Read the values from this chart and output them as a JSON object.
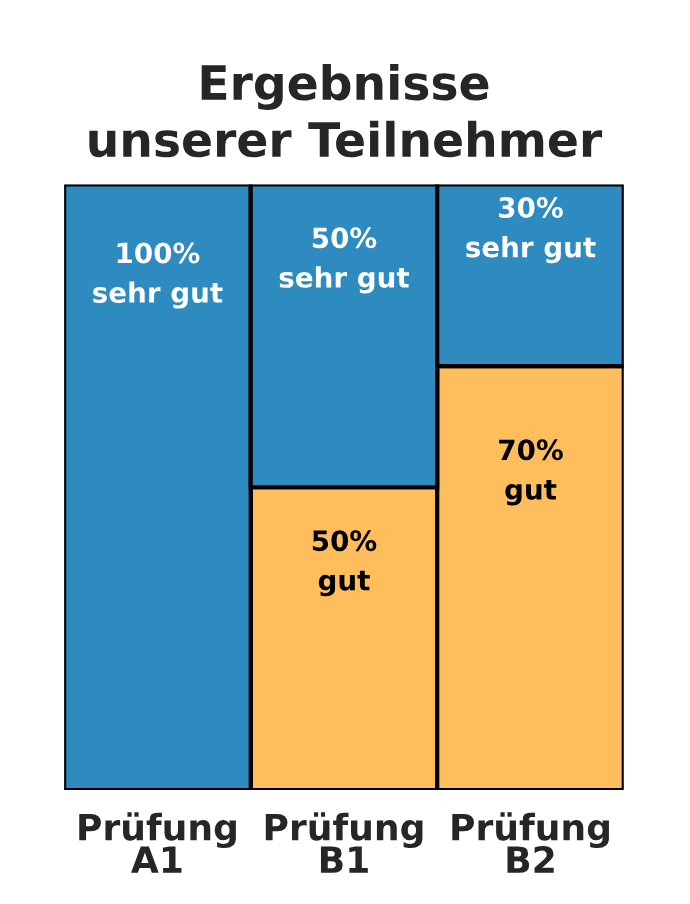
{
  "chart_data": {
    "type": "bar",
    "title": "Ergebnisse\nunserer Teilnehmer",
    "categories": [
      "Prüfung\nA1",
      "Prüfung\nB1",
      "Prüfung\nB2"
    ],
    "stacked": true,
    "series": [
      {
        "name": "gut",
        "color": "#ffbe5c",
        "values": [
          0,
          50,
          70
        ],
        "value_labels": [
          null,
          "50%",
          "70%"
        ]
      },
      {
        "name": "sehr gut",
        "color": "#2e8bc0",
        "values": [
          100,
          50,
          30
        ],
        "value_labels": [
          "100%",
          "50%",
          "30%"
        ]
      }
    ]
  }
}
